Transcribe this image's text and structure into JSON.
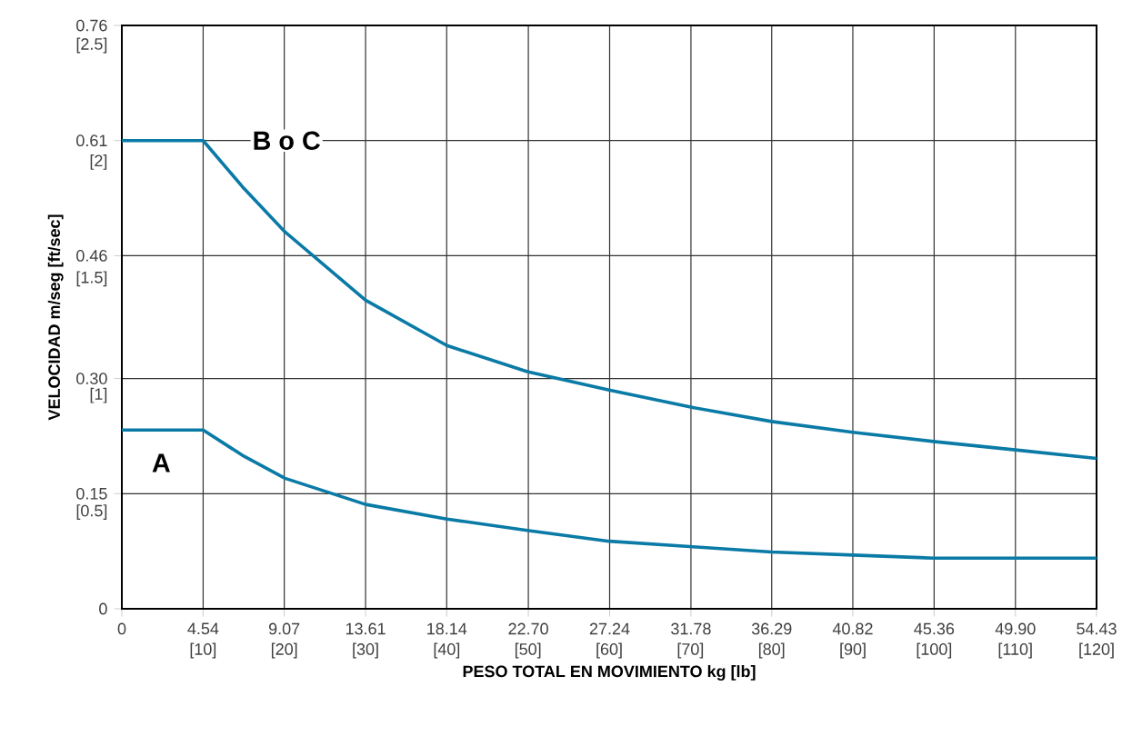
{
  "chart_data": {
    "type": "line",
    "xlabel": "PESO TOTAL EN MOVIMIENTO kg [lb]",
    "ylabel": "VELOCIDAD m/seg [ft/sec]",
    "xlim": [
      0,
      54.43
    ],
    "ylim": [
      0,
      0.76
    ],
    "xticks": [
      0,
      4.54,
      9.07,
      13.61,
      18.14,
      {
        "value": 22.7,
        "label": "22.70"
      },
      27.24,
      31.78,
      36.29,
      40.82,
      45.36,
      {
        "value": 49.9,
        "label": "49.90"
      },
      54.43
    ],
    "yticks": [
      0,
      0.15,
      {
        "value": 0.3,
        "label": "0.30"
      },
      0.46,
      0.61,
      0.76
    ],
    "x2lim": [
      0,
      120
    ],
    "x2ticks": [
      {
        "value": 10,
        "label": "[10]"
      },
      {
        "value": 20,
        "label": "[20]"
      },
      {
        "value": 30,
        "label": "[30]"
      },
      {
        "value": 40,
        "label": "[40]"
      },
      {
        "value": 50,
        "label": "[50]"
      },
      {
        "value": 60,
        "label": "[60]"
      },
      {
        "value": 70,
        "label": "[70]"
      },
      {
        "value": 80,
        "label": "[80]"
      },
      {
        "value": 90,
        "label": "[90]"
      },
      {
        "value": 100,
        "label": "[100]"
      },
      {
        "value": 110,
        "label": "[110]"
      },
      {
        "value": 120,
        "label": "[120]"
      }
    ],
    "y2lim": [
      0,
      2.5
    ],
    "y2ticks": [
      {
        "value": 0.5,
        "label": "[0.5]"
      },
      {
        "value": 1,
        "label": "[1]"
      },
      {
        "value": 1.5,
        "label": "[1.5]"
      },
      {
        "value": 2,
        "label": "[2]"
      },
      {
        "value": 2.5,
        "label": "[2.5]"
      }
    ],
    "grid": true,
    "marker": "none",
    "line_style": "solid",
    "series": [
      {
        "color": "#0a7aa6",
        "x": [
          0,
          4.54,
          6.73,
          9.11,
          13.61,
          18.15,
          22.64,
          27.21,
          31.71,
          36.28,
          40.82,
          45.32,
          49.89,
          54.43
        ],
        "values": [
          0.61,
          0.61,
          0.55,
          0.491,
          0.402,
          0.343,
          0.309,
          0.285,
          0.263,
          0.244,
          0.23,
          0.218,
          0.207,
          0.196
        ]
      },
      {
        "color": "#0a7aa6",
        "x": [
          0,
          4.54,
          6.73,
          9.11,
          13.61,
          18.15,
          22.64,
          27.21,
          31.71,
          36.28,
          40.82,
          45.32,
          49.89,
          54.43
        ],
        "values": [
          0.233,
          0.233,
          0.2,
          0.17,
          0.136,
          0.117,
          0.102,
          0.088,
          0.081,
          0.074,
          0.07,
          0.066,
          0.066,
          0.066
        ]
      }
    ],
    "annotations": [
      {
        "text": "B o C",
        "x": 9.2,
        "y": 0.61
      },
      {
        "text": "A",
        "x": 2.2,
        "y": 0.19
      }
    ]
  }
}
